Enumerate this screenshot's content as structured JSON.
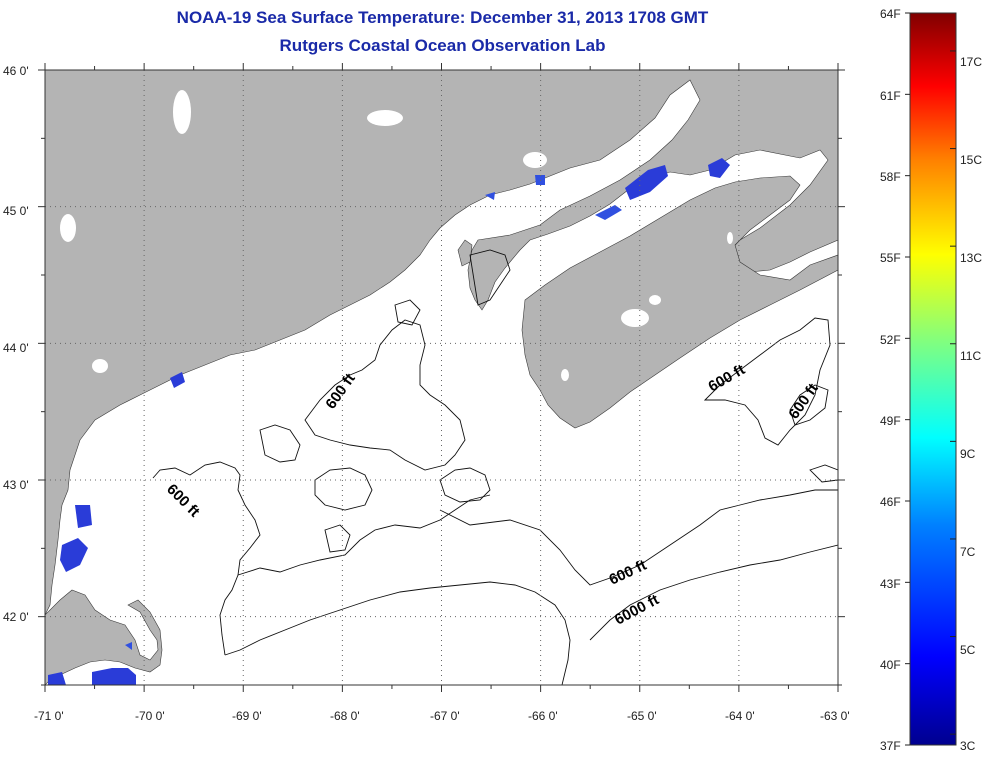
{
  "title": {
    "line1": "NOAA-19 Sea Surface Temperature:  December 31, 2013 1708 GMT",
    "line2": "Rutgers Coastal Ocean Observation Lab"
  },
  "map": {
    "lon_range": [
      -71,
      -63
    ],
    "lat_range": [
      41.5,
      46
    ],
    "lat_ticks": [
      "46 0'",
      "45 0'",
      "44 0'",
      "43 0'",
      "42 0'"
    ],
    "lon_ticks": [
      "-71 0'",
      "-70 0'",
      "-69 0'",
      "-68 0'",
      "-67 0'",
      "-66 0'",
      "-65 0'",
      "-64 0'",
      "-63 0'"
    ],
    "grid": "dotted",
    "land_color": "#b4b4b4",
    "water_color": "#ffffff",
    "contour_labels": [
      "600 ft",
      "600 ft",
      "600 ft",
      "600 ft",
      "600 ft",
      "6000 ft"
    ]
  },
  "colorbar": {
    "range_f": [
      37,
      64
    ],
    "fahrenheit_labels": [
      "64F",
      "61F",
      "58F",
      "55F",
      "52F",
      "49F",
      "46F",
      "43F",
      "40F",
      "37F"
    ],
    "celsius_labels": [
      "17C",
      "15C",
      "13C",
      "11C",
      "9C",
      "7C",
      "5C",
      "3C"
    ],
    "colors": [
      "#00008f",
      "#0000ff",
      "#0080ff",
      "#00ffff",
      "#80ff80",
      "#ffff00",
      "#ff8000",
      "#ff0000",
      "#800000"
    ]
  }
}
